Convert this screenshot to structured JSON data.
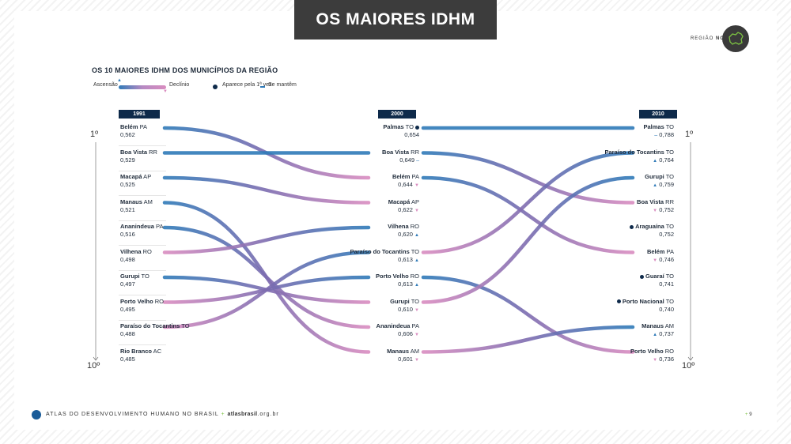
{
  "header": {
    "title": "OS MAIORES IDHM",
    "region_prefix": "REGIÃO",
    "region_name": "NORTE",
    "region_arrow": "»",
    "region_icon": "north-region-map-icon"
  },
  "subtitle": "OS 10 MAIORES IDHM DOS MUNICÍPIOS DA REGIÃO",
  "legend": {
    "ascensao": "Ascensão",
    "declinio": "Declínio",
    "aparece": "Aparece pela 1ª vez",
    "mantem": "Se mantêm"
  },
  "ranks": {
    "top": "1º",
    "bottom": "10º"
  },
  "colors": {
    "up": "#2f7ab8",
    "down": "#d98cc0",
    "dark": "#0e2a4a"
  },
  "chart_data": {
    "type": "slope",
    "years": [
      "1991",
      "2000",
      "2010"
    ],
    "columns": [
      {
        "year": "1991",
        "items": [
          {
            "name": "Belém",
            "uf": "PA",
            "value": "0,562"
          },
          {
            "name": "Boa Vista",
            "uf": "RR",
            "value": "0,529"
          },
          {
            "name": "Macapá",
            "uf": "AP",
            "value": "0,525"
          },
          {
            "name": "Manaus",
            "uf": "AM",
            "value": "0,521"
          },
          {
            "name": "Ananindeua",
            "uf": "PA",
            "value": "0,516"
          },
          {
            "name": "Vilhena",
            "uf": "RO",
            "value": "0,498"
          },
          {
            "name": "Gurupi",
            "uf": "TO",
            "value": "0,497"
          },
          {
            "name": "Porto Velho",
            "uf": "RO",
            "value": "0,495"
          },
          {
            "name": "Paraíso do Tocantins",
            "uf": "TO",
            "value": "0,488"
          },
          {
            "name": "Rio Branco",
            "uf": "AC",
            "value": "0,485"
          }
        ]
      },
      {
        "year": "2000",
        "items": [
          {
            "name": "Palmas",
            "uf": "TO",
            "value": "0,654",
            "marker": "new"
          },
          {
            "name": "Boa Vista",
            "uf": "RR",
            "value": "0,649",
            "marker": "same"
          },
          {
            "name": "Belém",
            "uf": "PA",
            "value": "0,644",
            "marker": "down"
          },
          {
            "name": "Macapá",
            "uf": "AP",
            "value": "0,622",
            "marker": "down"
          },
          {
            "name": "Vilhena",
            "uf": "RO",
            "value": "0,620",
            "marker": "up"
          },
          {
            "name": "Paraíso do Tocantins",
            "uf": "TO",
            "value": "0,613",
            "marker": "up"
          },
          {
            "name": "Porto Velho",
            "uf": "RO",
            "value": "0,613",
            "marker": "up"
          },
          {
            "name": "Gurupi",
            "uf": "TO",
            "value": "0,610",
            "marker": "down"
          },
          {
            "name": "Ananindeua",
            "uf": "PA",
            "value": "0,606",
            "marker": "down"
          },
          {
            "name": "Manaus",
            "uf": "AM",
            "value": "0,601",
            "marker": "down"
          }
        ]
      },
      {
        "year": "2010",
        "items": [
          {
            "name": "Palmas",
            "uf": "TO",
            "value": "0,788",
            "marker": "same"
          },
          {
            "name": "Paraíso do Tocantins",
            "uf": "TO",
            "value": "0,764",
            "marker": "up"
          },
          {
            "name": "Gurupi",
            "uf": "TO",
            "value": "0,759",
            "marker": "up"
          },
          {
            "name": "Boa Vista",
            "uf": "RR",
            "value": "0,752",
            "marker": "down"
          },
          {
            "name": "Araguaína",
            "uf": "TO",
            "value": "0,752",
            "marker": "new"
          },
          {
            "name": "Belém",
            "uf": "PA",
            "value": "0,746",
            "marker": "down"
          },
          {
            "name": "Guaraí",
            "uf": "TO",
            "value": "0,741",
            "marker": "new"
          },
          {
            "name": "Porto Nacional",
            "uf": "TO",
            "value": "0,740",
            "marker": "new"
          },
          {
            "name": "Manaus",
            "uf": "AM",
            "value": "0,737",
            "marker": "up"
          },
          {
            "name": "Porto Velho",
            "uf": "RO",
            "value": "0,736",
            "marker": "down"
          }
        ]
      }
    ],
    "flows": [
      {
        "period": 0,
        "from": 0,
        "to": 2
      },
      {
        "period": 0,
        "from": 1,
        "to": 1
      },
      {
        "period": 0,
        "from": 2,
        "to": 3
      },
      {
        "period": 0,
        "from": 3,
        "to": 9
      },
      {
        "period": 0,
        "from": 4,
        "to": 8
      },
      {
        "period": 0,
        "from": 5,
        "to": 4
      },
      {
        "period": 0,
        "from": 6,
        "to": 7
      },
      {
        "period": 0,
        "from": 7,
        "to": 6
      },
      {
        "period": 0,
        "from": 8,
        "to": 5
      },
      {
        "period": 1,
        "from": 0,
        "to": 0
      },
      {
        "period": 1,
        "from": 1,
        "to": 3
      },
      {
        "period": 1,
        "from": 2,
        "to": 5
      },
      {
        "period": 1,
        "from": 5,
        "to": 1
      },
      {
        "period": 1,
        "from": 6,
        "to": 9
      },
      {
        "period": 1,
        "from": 7,
        "to": 2
      },
      {
        "period": 1,
        "from": 9,
        "to": 8
      }
    ]
  },
  "footer": {
    "brand": "ATLAS DO DESENVOLVIMENTO HUMANO NO BRASIL",
    "sep": "+",
    "site_bold": "atlasbrasil",
    "site_rest": ".org.br",
    "page_sep": "+",
    "page": "9"
  }
}
